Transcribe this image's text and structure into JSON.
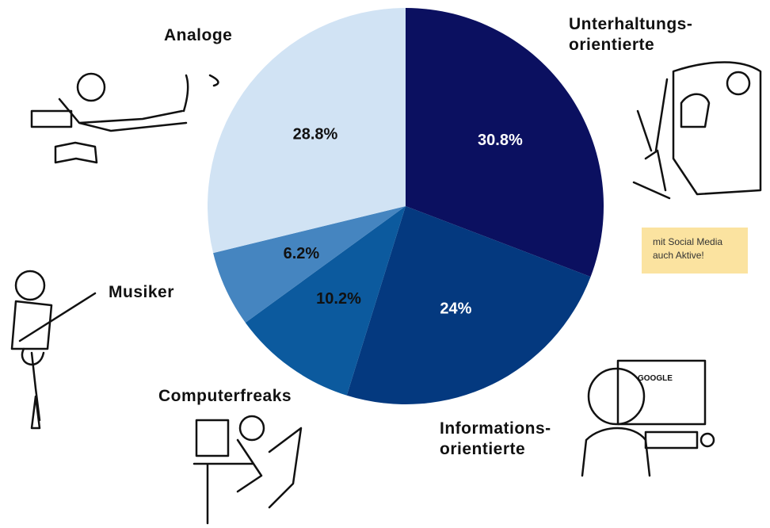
{
  "chart_data": {
    "type": "pie",
    "categories": [
      "Unterhaltungs-\norientierte",
      "Informations-\norientierte",
      "Computerfreaks",
      "Musiker",
      "Analoge"
    ],
    "values": [
      30.8,
      24,
      10.2,
      6.2,
      28.8
    ],
    "value_labels": [
      "30.8%",
      "24%",
      "10.2%",
      "6.2%",
      "28.8%"
    ],
    "colors": [
      "#0b1060",
      "#04397f",
      "#0c5a9e",
      "#4585c0",
      "#d1e3f4"
    ],
    "value_label_colors": [
      "#ffffff",
      "#ffffff",
      "#111111",
      "#111111",
      "#111111"
    ],
    "annotation": "mit Social Media\nauch Aktive!"
  }
}
